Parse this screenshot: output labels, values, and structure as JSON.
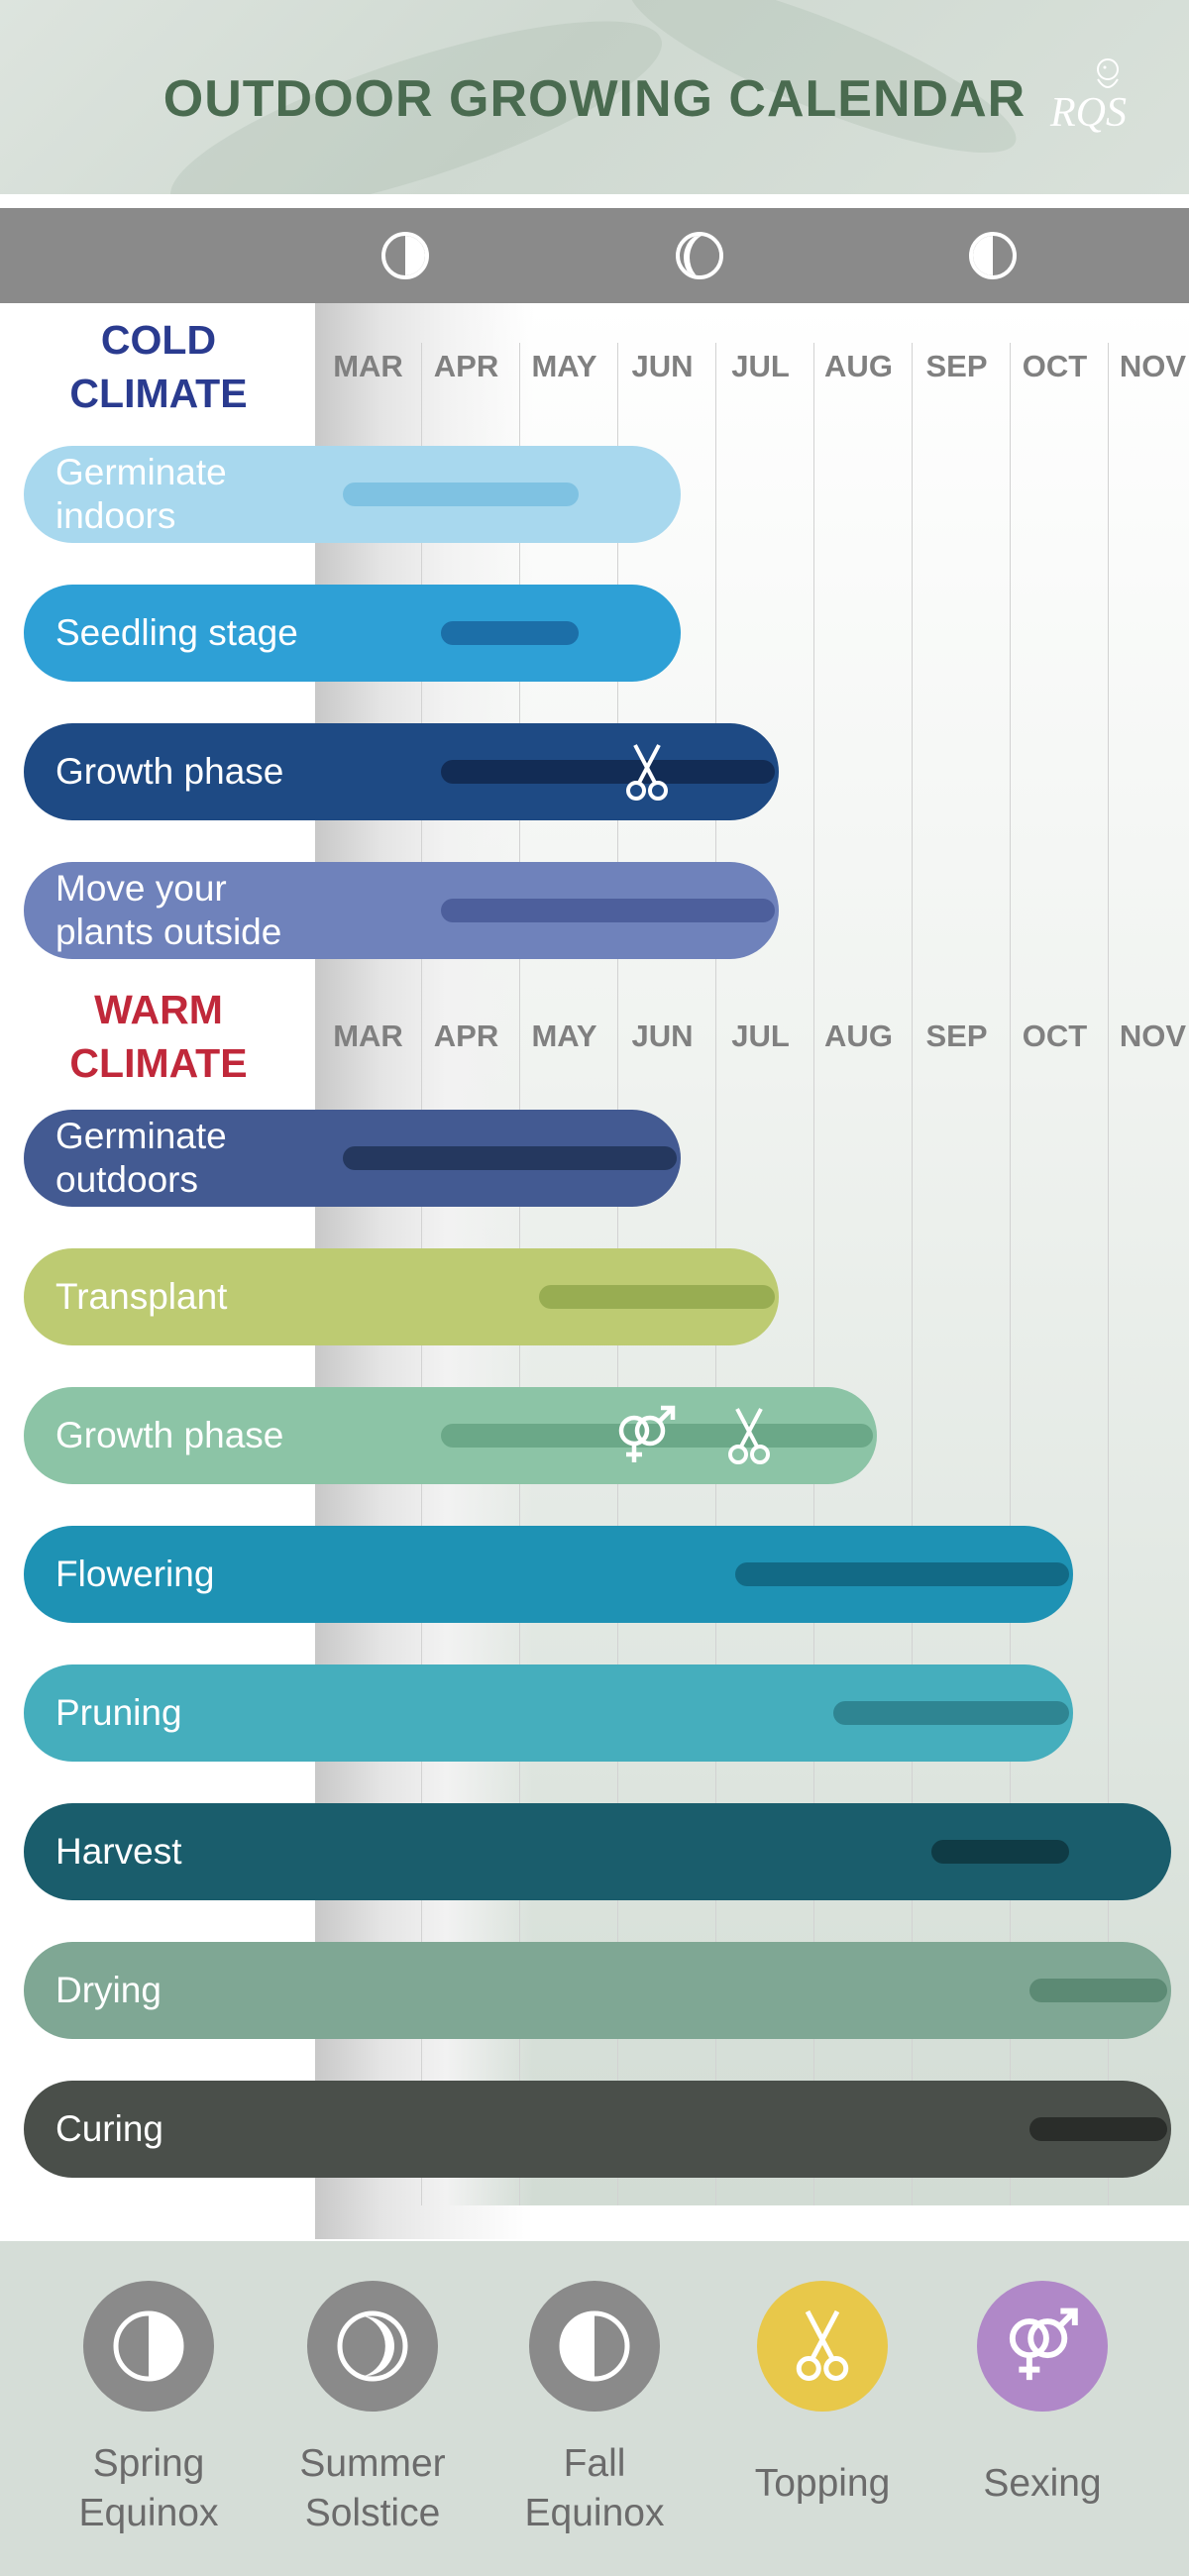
{
  "header": {
    "title": "OUTDOOR GROWING CALENDAR",
    "logo_text": "RQS"
  },
  "moon_bar": {
    "phases": [
      "spring-equinox-icon",
      "summer-solstice-icon",
      "fall-equinox-icon"
    ]
  },
  "months": [
    "MAR",
    "APR",
    "MAY",
    "JUN",
    "JUL",
    "AUG",
    "SEP",
    "OCT",
    "NOV"
  ],
  "cold": {
    "title": "COLD\nCLIMATE",
    "title_color": "#2a3b8f",
    "stages": [
      {
        "label": "Germinate\n indoors",
        "color": "#a8d8ee",
        "range_color": "#7fc2e2",
        "bar_end": "Jun",
        "start": "Mar",
        "end": "May"
      },
      {
        "label": "Seedling stage",
        "color": "#2ea0d6",
        "range_color": "#1c6fa8",
        "bar_end": "Jun",
        "start": "Apr",
        "end": "May"
      },
      {
        "label": "Growth phase",
        "color": "#1e4a84",
        "range_color": "#122c55",
        "bar_end": "Jul",
        "start": "Apr",
        "end": "Jul",
        "marker": "scissors-icon"
      },
      {
        "label": "Move your\nplants outside",
        "color": "#6f82bb",
        "range_color": "#4d5f9c",
        "bar_end": "Jul",
        "start": "Apr",
        "end": "Jul"
      }
    ]
  },
  "warm": {
    "title": "WARM\nCLIMATE",
    "title_color": "#c0283a",
    "stages": [
      {
        "label": "Germinate\noutdoors",
        "color": "#435a92",
        "range_color": "#25385f",
        "bar_end": "Jun",
        "start": "Mar",
        "end": "Jun"
      },
      {
        "label": "Transplant",
        "color": "#bdcb72",
        "range_color": "#98ad52",
        "bar_end": "Jul",
        "start": "May",
        "end": "Jul"
      },
      {
        "label": "Growth phase",
        "color": "#8cc4a6",
        "range_color": "#6ba888",
        "bar_end": "Aug",
        "start": "Apr",
        "end": "Aug",
        "markers": [
          "sexing-icon",
          "scissors-icon"
        ]
      },
      {
        "label": "Flowering",
        "color": "#1e92b4",
        "range_color": "#126a86",
        "bar_end": "Oct",
        "start": "Jul",
        "end": "Oct"
      },
      {
        "label": "Pruning",
        "color": "#45aebd",
        "range_color": "#2f8592",
        "bar_end": "Oct",
        "start": "Aug",
        "end": "Oct"
      },
      {
        "label": "Harvest",
        "color": "#1a5d6c",
        "range_color": "#0f3b45",
        "bar_end": "Nov",
        "start": "Sep",
        "end": "Oct"
      },
      {
        "label": "Drying",
        "color": "#7fa794",
        "range_color": "#5c8a74",
        "bar_end": "Nov",
        "start": "Oct",
        "end": "Nov"
      },
      {
        "label": "Curing",
        "color": "#4a4f4a",
        "range_color": "#2a2d2a",
        "bar_end": "Nov",
        "start": "Oct",
        "end": "Nov"
      }
    ]
  },
  "legend": [
    {
      "label": "Spring\nEquinox",
      "icon": "spring-equinox-icon",
      "circle_color": "#8a8a8a"
    },
    {
      "label": "Summer\nSolstice",
      "icon": "summer-solstice-icon",
      "circle_color": "#8a8a8a"
    },
    {
      "label": "Fall\nEquinox",
      "icon": "fall-equinox-icon",
      "circle_color": "#8a8a8a"
    },
    {
      "label": "Topping",
      "icon": "scissors-icon",
      "circle_color": "#e8c84a"
    },
    {
      "label": "Sexing",
      "icon": "sexing-icon",
      "circle_color": "#b088c8"
    }
  ]
}
